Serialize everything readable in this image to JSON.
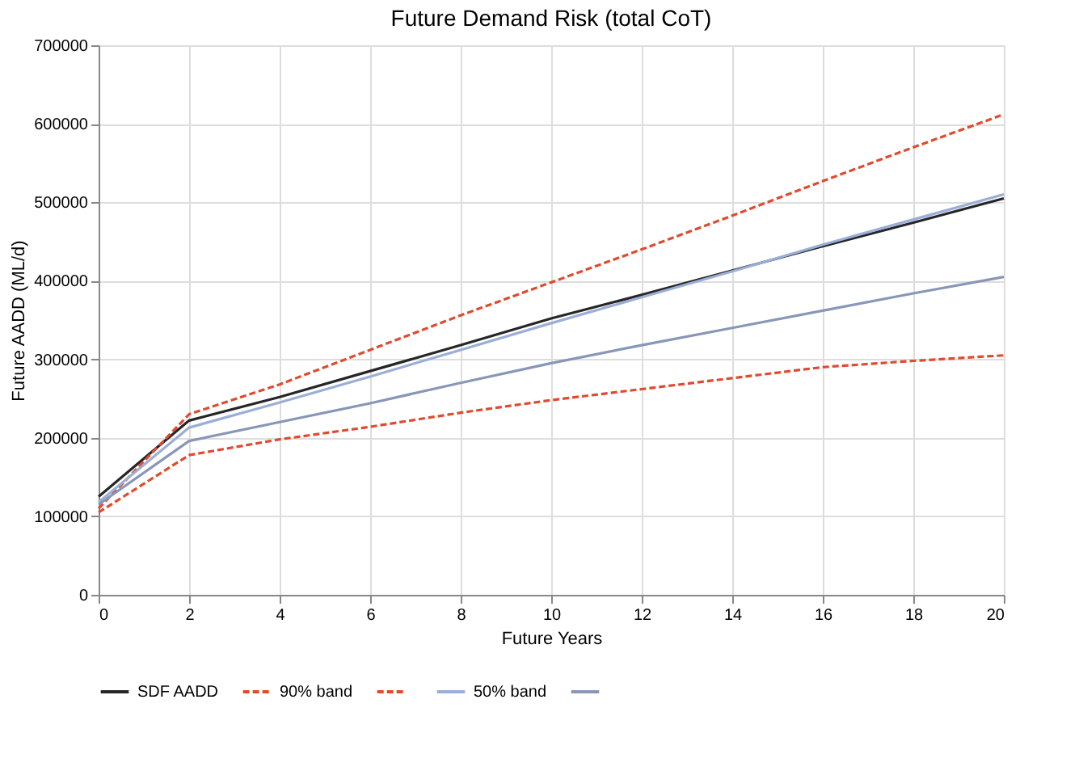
{
  "chart_data": {
    "type": "line",
    "title": "Future Demand Risk (total CoT)",
    "xlabel": "Future Years",
    "ylabel": "Future AADD (ML/d)",
    "x": [
      0,
      2,
      4,
      6,
      8,
      10,
      12,
      14,
      16,
      18,
      20
    ],
    "series": [
      {
        "name": "SDF AADD",
        "color": "#262626",
        "line_style": "solid",
        "values": [
          125000,
          222000,
          252000,
          285000,
          318000,
          352000,
          382000,
          413000,
          444000,
          474000,
          505000
        ]
      },
      {
        "name": "90% band",
        "color": "#e04a2f",
        "line_style": "dashed",
        "values": [
          110000,
          230000,
          268000,
          312000,
          356000,
          398000,
          440000,
          483000,
          527000,
          570000,
          612000
        ]
      },
      {
        "color": "#e04a2f",
        "line_style": "dashed",
        "values": [
          105000,
          178000,
          198000,
          214000,
          232000,
          248000,
          262000,
          276000,
          290000,
          298000,
          305000
        ]
      },
      {
        "name": "50% band",
        "color": "#9aaed8",
        "line_style": "solid",
        "values": [
          118000,
          213000,
          245000,
          278000,
          312000,
          346000,
          379000,
          412000,
          446000,
          478000,
          510000
        ]
      },
      {
        "color": "#8896b8",
        "line_style": "solid",
        "values": [
          115000,
          196000,
          220000,
          244000,
          270000,
          295000,
          318000,
          340000,
          362000,
          384000,
          405000
        ]
      }
    ],
    "xlim": [
      0,
      20
    ],
    "xticks": [
      0,
      2,
      4,
      6,
      8,
      10,
      12,
      14,
      16,
      18,
      20
    ],
    "ylim": [
      0,
      700000
    ],
    "yticks": [
      0,
      100000,
      200000,
      300000,
      400000,
      500000,
      600000,
      700000
    ],
    "grid": true,
    "legend": "bottom",
    "marker": "none"
  }
}
